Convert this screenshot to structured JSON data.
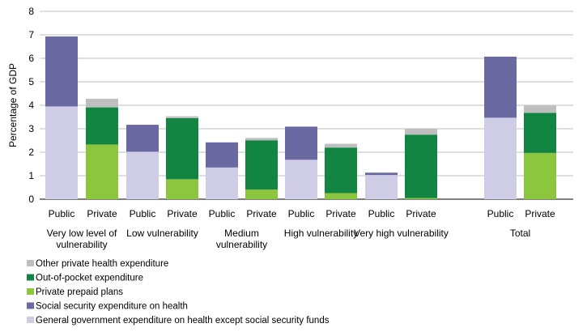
{
  "chart_data": {
    "type": "bar",
    "stacked": true,
    "ylabel": "Percentage of GDP",
    "ylim": [
      0,
      8
    ],
    "yticks": [
      0,
      1,
      2,
      3,
      4,
      5,
      6,
      7,
      8
    ],
    "grid": true,
    "legend_placement": "bottom-left",
    "colors": {
      "general_gov": "#cfcce6",
      "social_security": "#6b69a2",
      "prepaid": "#8cc63f",
      "out_of_pocket": "#138543",
      "other_private": "#bfbfbf",
      "grid": "#bfbfbf"
    },
    "groups": [
      {
        "label": "Very low level of vulnerability",
        "categories": [
          "Public",
          "Private"
        ]
      },
      {
        "label": "Low vulnerability",
        "categories": [
          "Public",
          "Private"
        ]
      },
      {
        "label": "Medium vulnerability",
        "categories": [
          "Public",
          "Private"
        ]
      },
      {
        "label": "High vulnerability",
        "categories": [
          "Public",
          "Private"
        ]
      },
      {
        "label": "Very high vulnerability",
        "categories": [
          "Public",
          "Private"
        ]
      },
      {
        "label": "Total",
        "categories": [
          "Public",
          "Private"
        ]
      }
    ],
    "series": [
      {
        "name": "General government expenditure on health except social security funds",
        "key": "general_gov",
        "values": [
          3.95,
          0,
          2.02,
          0,
          1.35,
          0,
          1.68,
          0,
          1.03,
          0,
          3.47,
          0
        ]
      },
      {
        "name": "Social security expenditure on health",
        "key": "social_security",
        "values": [
          2.98,
          0,
          1.15,
          0,
          1.07,
          0,
          1.41,
          0,
          0.1,
          0,
          2.6,
          0
        ]
      },
      {
        "name": "Private prepaid plans",
        "key": "prepaid",
        "values": [
          0,
          2.33,
          0,
          0.85,
          0,
          0.41,
          0,
          0.26,
          0,
          0.05,
          0,
          1.97
        ]
      },
      {
        "name": "Out-of-pocket expenditure",
        "key": "out_of_pocket",
        "values": [
          0,
          1.58,
          0,
          2.6,
          0,
          2.1,
          0,
          1.94,
          0,
          2.7,
          0,
          1.71
        ]
      },
      {
        "name": "Other private health expenditure",
        "key": "other_private",
        "values": [
          0,
          0.37,
          0,
          0.08,
          0,
          0.1,
          0,
          0.16,
          0,
          0.25,
          0,
          0.3
        ]
      }
    ],
    "legend_order": [
      "other_private",
      "out_of_pocket",
      "prepaid",
      "social_security",
      "general_gov"
    ]
  }
}
